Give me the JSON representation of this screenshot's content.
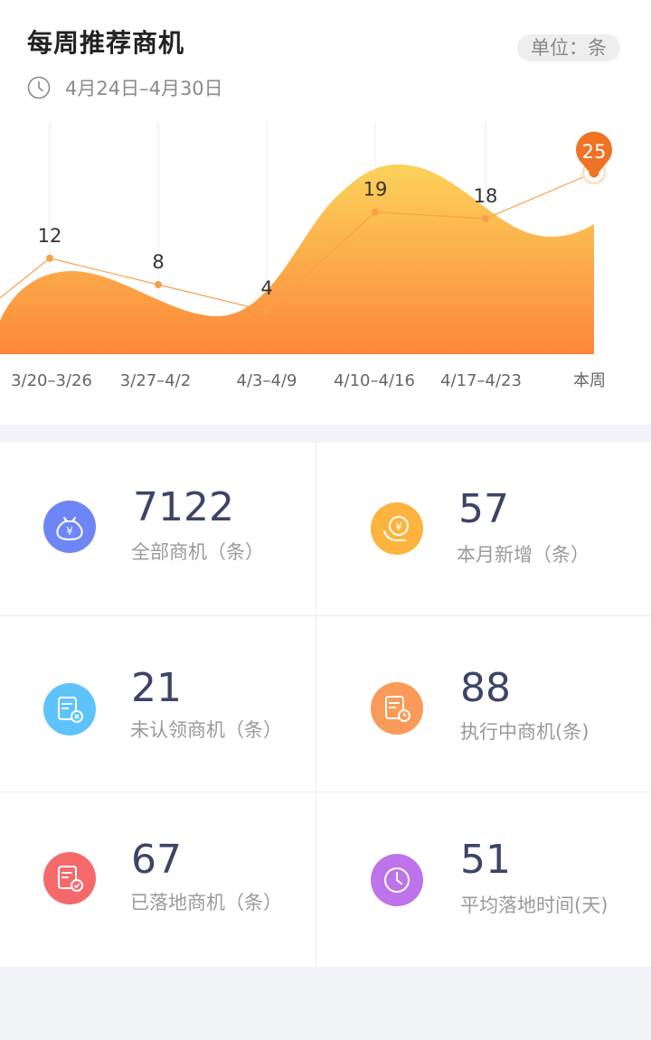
{
  "header": {
    "title": "每周推荐商机",
    "unit_label": "单位：条",
    "date_range": "4月24日–4月30日"
  },
  "chart_data": {
    "type": "line",
    "categories": [
      "3/20–3/26",
      "3/27–4/2",
      "4/3–4/9",
      "4/10–4/16",
      "4/17–4/23",
      "本周"
    ],
    "values": [
      12,
      8,
      4,
      19,
      18,
      25
    ],
    "highlight_index": 5,
    "line_color": "#f7a04a",
    "area_color_top": "#fbd25a",
    "area_color_bottom": "#fd873a",
    "pin_color": "#f07224"
  },
  "stats": [
    {
      "value": "7122",
      "label": "全部商机（条）",
      "icon": "money-bag-icon",
      "color": "#6e86f5"
    },
    {
      "value": "57",
      "label": "本月新增（条）",
      "icon": "coin-hand-icon",
      "color": "#fcb43f"
    },
    {
      "value": "21",
      "label": "未认领商机（条）",
      "icon": "document-cancel-icon",
      "color": "#5ec3fb"
    },
    {
      "value": "88",
      "label": "执行中商机(条)",
      "icon": "document-clock-icon",
      "color": "#f99a58"
    },
    {
      "value": "67",
      "label": "已落地商机（条）",
      "icon": "document-check-icon",
      "color": "#f5696b"
    },
    {
      "value": "51",
      "label": "平均落地时间(天)",
      "icon": "clock-icon",
      "color": "#bd73ea"
    }
  ]
}
